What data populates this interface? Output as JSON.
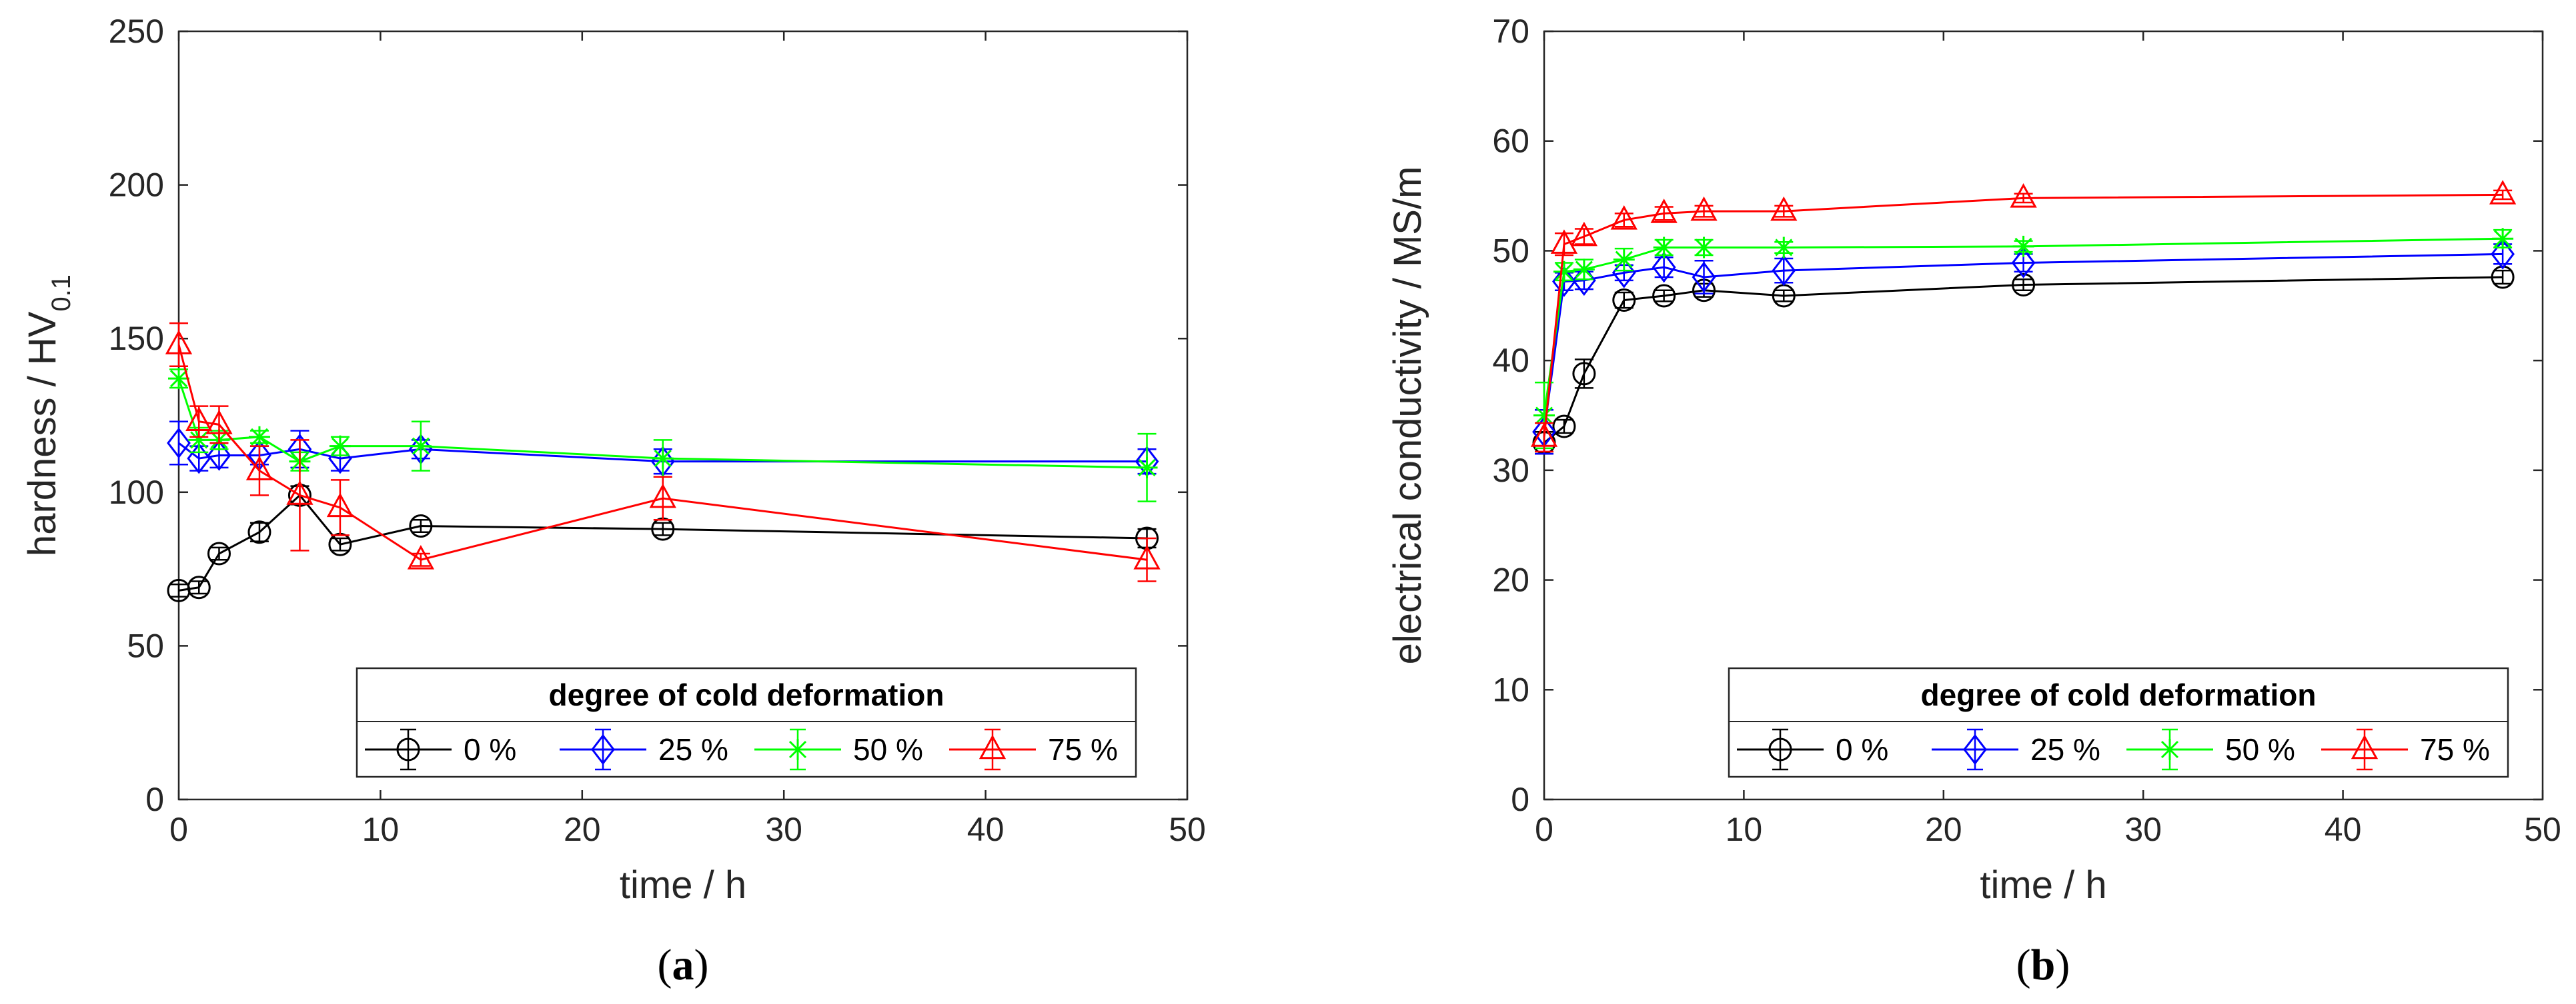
{
  "chart_data": [
    {
      "type": "line",
      "panel_label": "a",
      "xlabel": "time / h",
      "ylabel": "hardness / HV",
      "ylabel_sub": "0.1",
      "xlim": [
        0,
        50
      ],
      "ylim": [
        0,
        250
      ],
      "xticks": [
        "0",
        "10",
        "20",
        "30",
        "40",
        "50"
      ],
      "yticks": [
        "0",
        "50",
        "100",
        "150",
        "200",
        "250"
      ],
      "xtick_values": [
        0,
        10,
        20,
        30,
        40,
        50
      ],
      "ytick_values": [
        0,
        50,
        100,
        150,
        200,
        250
      ],
      "grid": false,
      "legend": {
        "title": "degree of cold deformation",
        "position": "bottom-right"
      },
      "series": [
        {
          "name": "0 %",
          "color": "#000000",
          "marker": "circle",
          "x": [
            0,
            1,
            2,
            4,
            6,
            8,
            12,
            24,
            48
          ],
          "y": [
            68,
            69,
            80,
            87,
            99,
            83,
            89,
            88,
            85
          ],
          "err": [
            2,
            2,
            2,
            3,
            3,
            2,
            2,
            2,
            3
          ]
        },
        {
          "name": "25 %",
          "color": "#0000ff",
          "marker": "diamond",
          "x": [
            0,
            1,
            2,
            4,
            6,
            8,
            12,
            24,
            48
          ],
          "y": [
            116,
            111,
            112,
            112,
            114,
            111,
            114,
            110,
            110
          ],
          "err": [
            7,
            4,
            4,
            3,
            6,
            4,
            3,
            4,
            4
          ]
        },
        {
          "name": "50 %",
          "color": "#00ff00",
          "marker": "asterisk",
          "x": [
            0,
            1,
            2,
            4,
            6,
            8,
            12,
            24,
            48
          ],
          "y": [
            137,
            117,
            117,
            118,
            110,
            115,
            115,
            111,
            108
          ],
          "err": [
            3,
            4,
            3,
            2,
            3,
            3,
            8,
            6,
            11
          ]
        },
        {
          "name": "75 %",
          "color": "#ff0000",
          "marker": "triangle",
          "x": [
            0,
            1,
            2,
            4,
            6,
            8,
            12,
            24,
            48
          ],
          "y": [
            148,
            123,
            122,
            107,
            99,
            95,
            78,
            98,
            78
          ],
          "err": [
            7,
            5,
            6,
            8,
            18,
            9,
            2,
            7,
            7
          ]
        }
      ]
    },
    {
      "type": "line",
      "panel_label": "b",
      "xlabel": "time / h",
      "ylabel": "electrical conductivity / MS/m",
      "ylabel_sub": "",
      "xlim": [
        0,
        50
      ],
      "ylim": [
        0,
        70
      ],
      "xticks": [
        "0",
        "10",
        "20",
        "30",
        "40",
        "50"
      ],
      "yticks": [
        "0",
        "10",
        "20",
        "30",
        "40",
        "50",
        "60",
        "70"
      ],
      "xtick_values": [
        0,
        10,
        20,
        30,
        40,
        50
      ],
      "ytick_values": [
        0,
        10,
        20,
        30,
        40,
        50,
        60,
        70
      ],
      "grid": false,
      "legend": {
        "title": "degree of cold deformation",
        "position": "bottom-right"
      },
      "series": [
        {
          "name": "0 %",
          "color": "#000000",
          "marker": "circle",
          "x": [
            0,
            1,
            2,
            4,
            6,
            8,
            12,
            24,
            48
          ],
          "y": [
            32.5,
            34,
            38.8,
            45.5,
            45.9,
            46.4,
            45.9,
            46.9,
            47.6
          ],
          "err": [
            1,
            0.6,
            1.3,
            0.7,
            0.5,
            0.6,
            0.5,
            0.5,
            0.6
          ]
        },
        {
          "name": "25 %",
          "color": "#0000ff",
          "marker": "diamond",
          "x": [
            0,
            1,
            2,
            4,
            6,
            8,
            12,
            24,
            48
          ],
          "y": [
            33.5,
            47.2,
            47.3,
            48,
            48.5,
            47.6,
            48.2,
            48.9,
            49.7
          ],
          "err": [
            2,
            0.8,
            0.8,
            0.7,
            0.9,
            1.5,
            1.1,
            0.8,
            0.9
          ]
        },
        {
          "name": "50 %",
          "color": "#00ff00",
          "marker": "asterisk",
          "x": [
            0,
            1,
            2,
            4,
            6,
            8,
            12,
            24,
            48
          ],
          "y": [
            35,
            48.1,
            48.3,
            49.2,
            50.3,
            50.3,
            50.3,
            50.4,
            51.1
          ],
          "err": [
            3,
            0.8,
            0.9,
            1,
            0.7,
            0.7,
            0.5,
            0.5,
            0.8
          ]
        },
        {
          "name": "75 %",
          "color": "#ff0000",
          "marker": "triangle",
          "x": [
            0,
            1,
            2,
            4,
            6,
            8,
            12,
            24,
            48
          ],
          "y": [
            33,
            50.6,
            51.3,
            52.8,
            53.4,
            53.6,
            53.6,
            54.8,
            55.1
          ],
          "err": [
            1.3,
            1,
            0.7,
            0.6,
            0.6,
            0.5,
            0.5,
            0.4,
            0.4
          ]
        }
      ]
    }
  ]
}
